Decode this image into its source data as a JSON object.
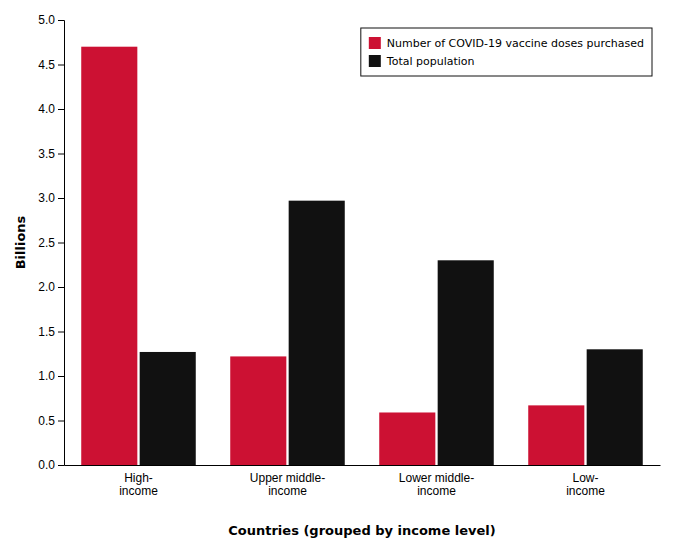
{
  "chart_data": {
    "type": "bar",
    "xlabel": "Countries (grouped by income level)",
    "ylabel": "Billions",
    "categories": [
      "High-\nincome",
      "Upper middle-\nincome",
      "Lower middle-\nincome",
      "Low-\nincome"
    ],
    "series": [
      {
        "name": "Number of COVID-19 vaccine doses purchased",
        "color": "#cc1133",
        "values": [
          4.7,
          1.22,
          0.59,
          0.67
        ]
      },
      {
        "name": "Total population",
        "color": "#111111",
        "values": [
          1.27,
          2.97,
          2.3,
          1.3
        ]
      }
    ],
    "ylim": [
      0,
      5.0
    ],
    "yticks": [
      {
        "value": 0,
        "label": "0.0"
      },
      0.5,
      {
        "value": 1,
        "label": "1.0"
      },
      1.5,
      {
        "value": 2,
        "label": "2.0"
      },
      2.5,
      {
        "value": 3,
        "label": "3.0"
      },
      3.5,
      {
        "value": 4,
        "label": "4.0"
      },
      4.5,
      {
        "value": 5,
        "label": "5.0"
      }
    ],
    "grid": false,
    "legend": "upper right"
  }
}
